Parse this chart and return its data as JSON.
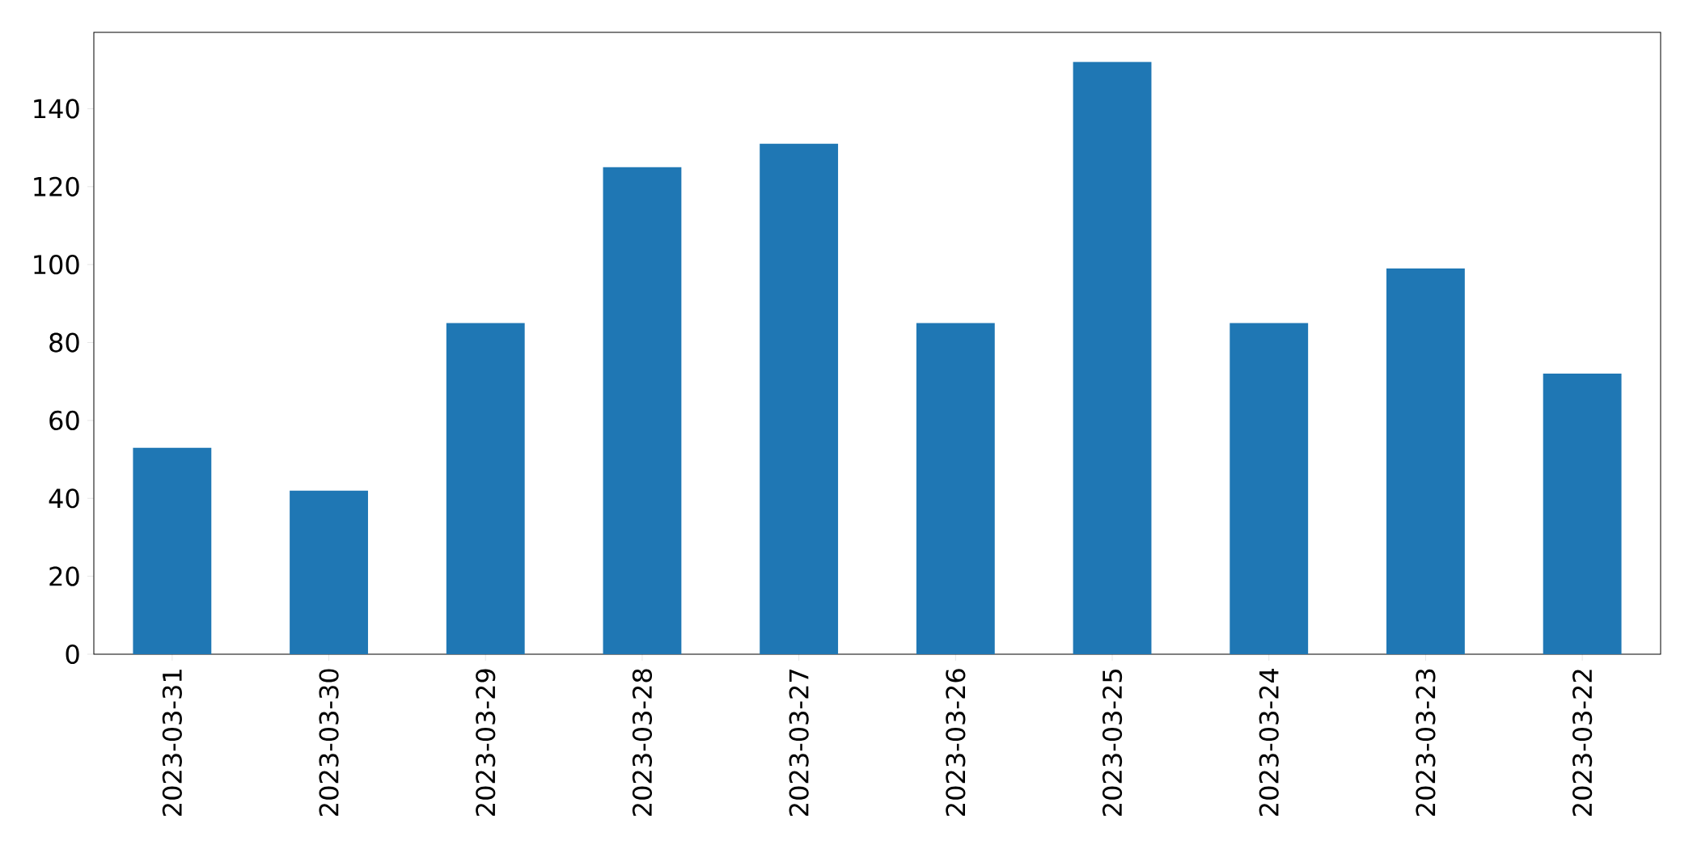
{
  "chart_data": {
    "type": "bar",
    "categories": [
      "2023-03-31",
      "2023-03-30",
      "2023-03-29",
      "2023-03-28",
      "2023-03-27",
      "2023-03-26",
      "2023-03-25",
      "2023-03-24",
      "2023-03-23",
      "2023-03-22"
    ],
    "values": [
      53,
      42,
      85,
      125,
      131,
      85,
      152,
      85,
      99,
      72
    ],
    "color": "#1f77b4",
    "ylim": [
      0,
      159.6
    ],
    "yticks": [
      0,
      20,
      40,
      60,
      80,
      100,
      120,
      140
    ],
    "grid": false
  }
}
